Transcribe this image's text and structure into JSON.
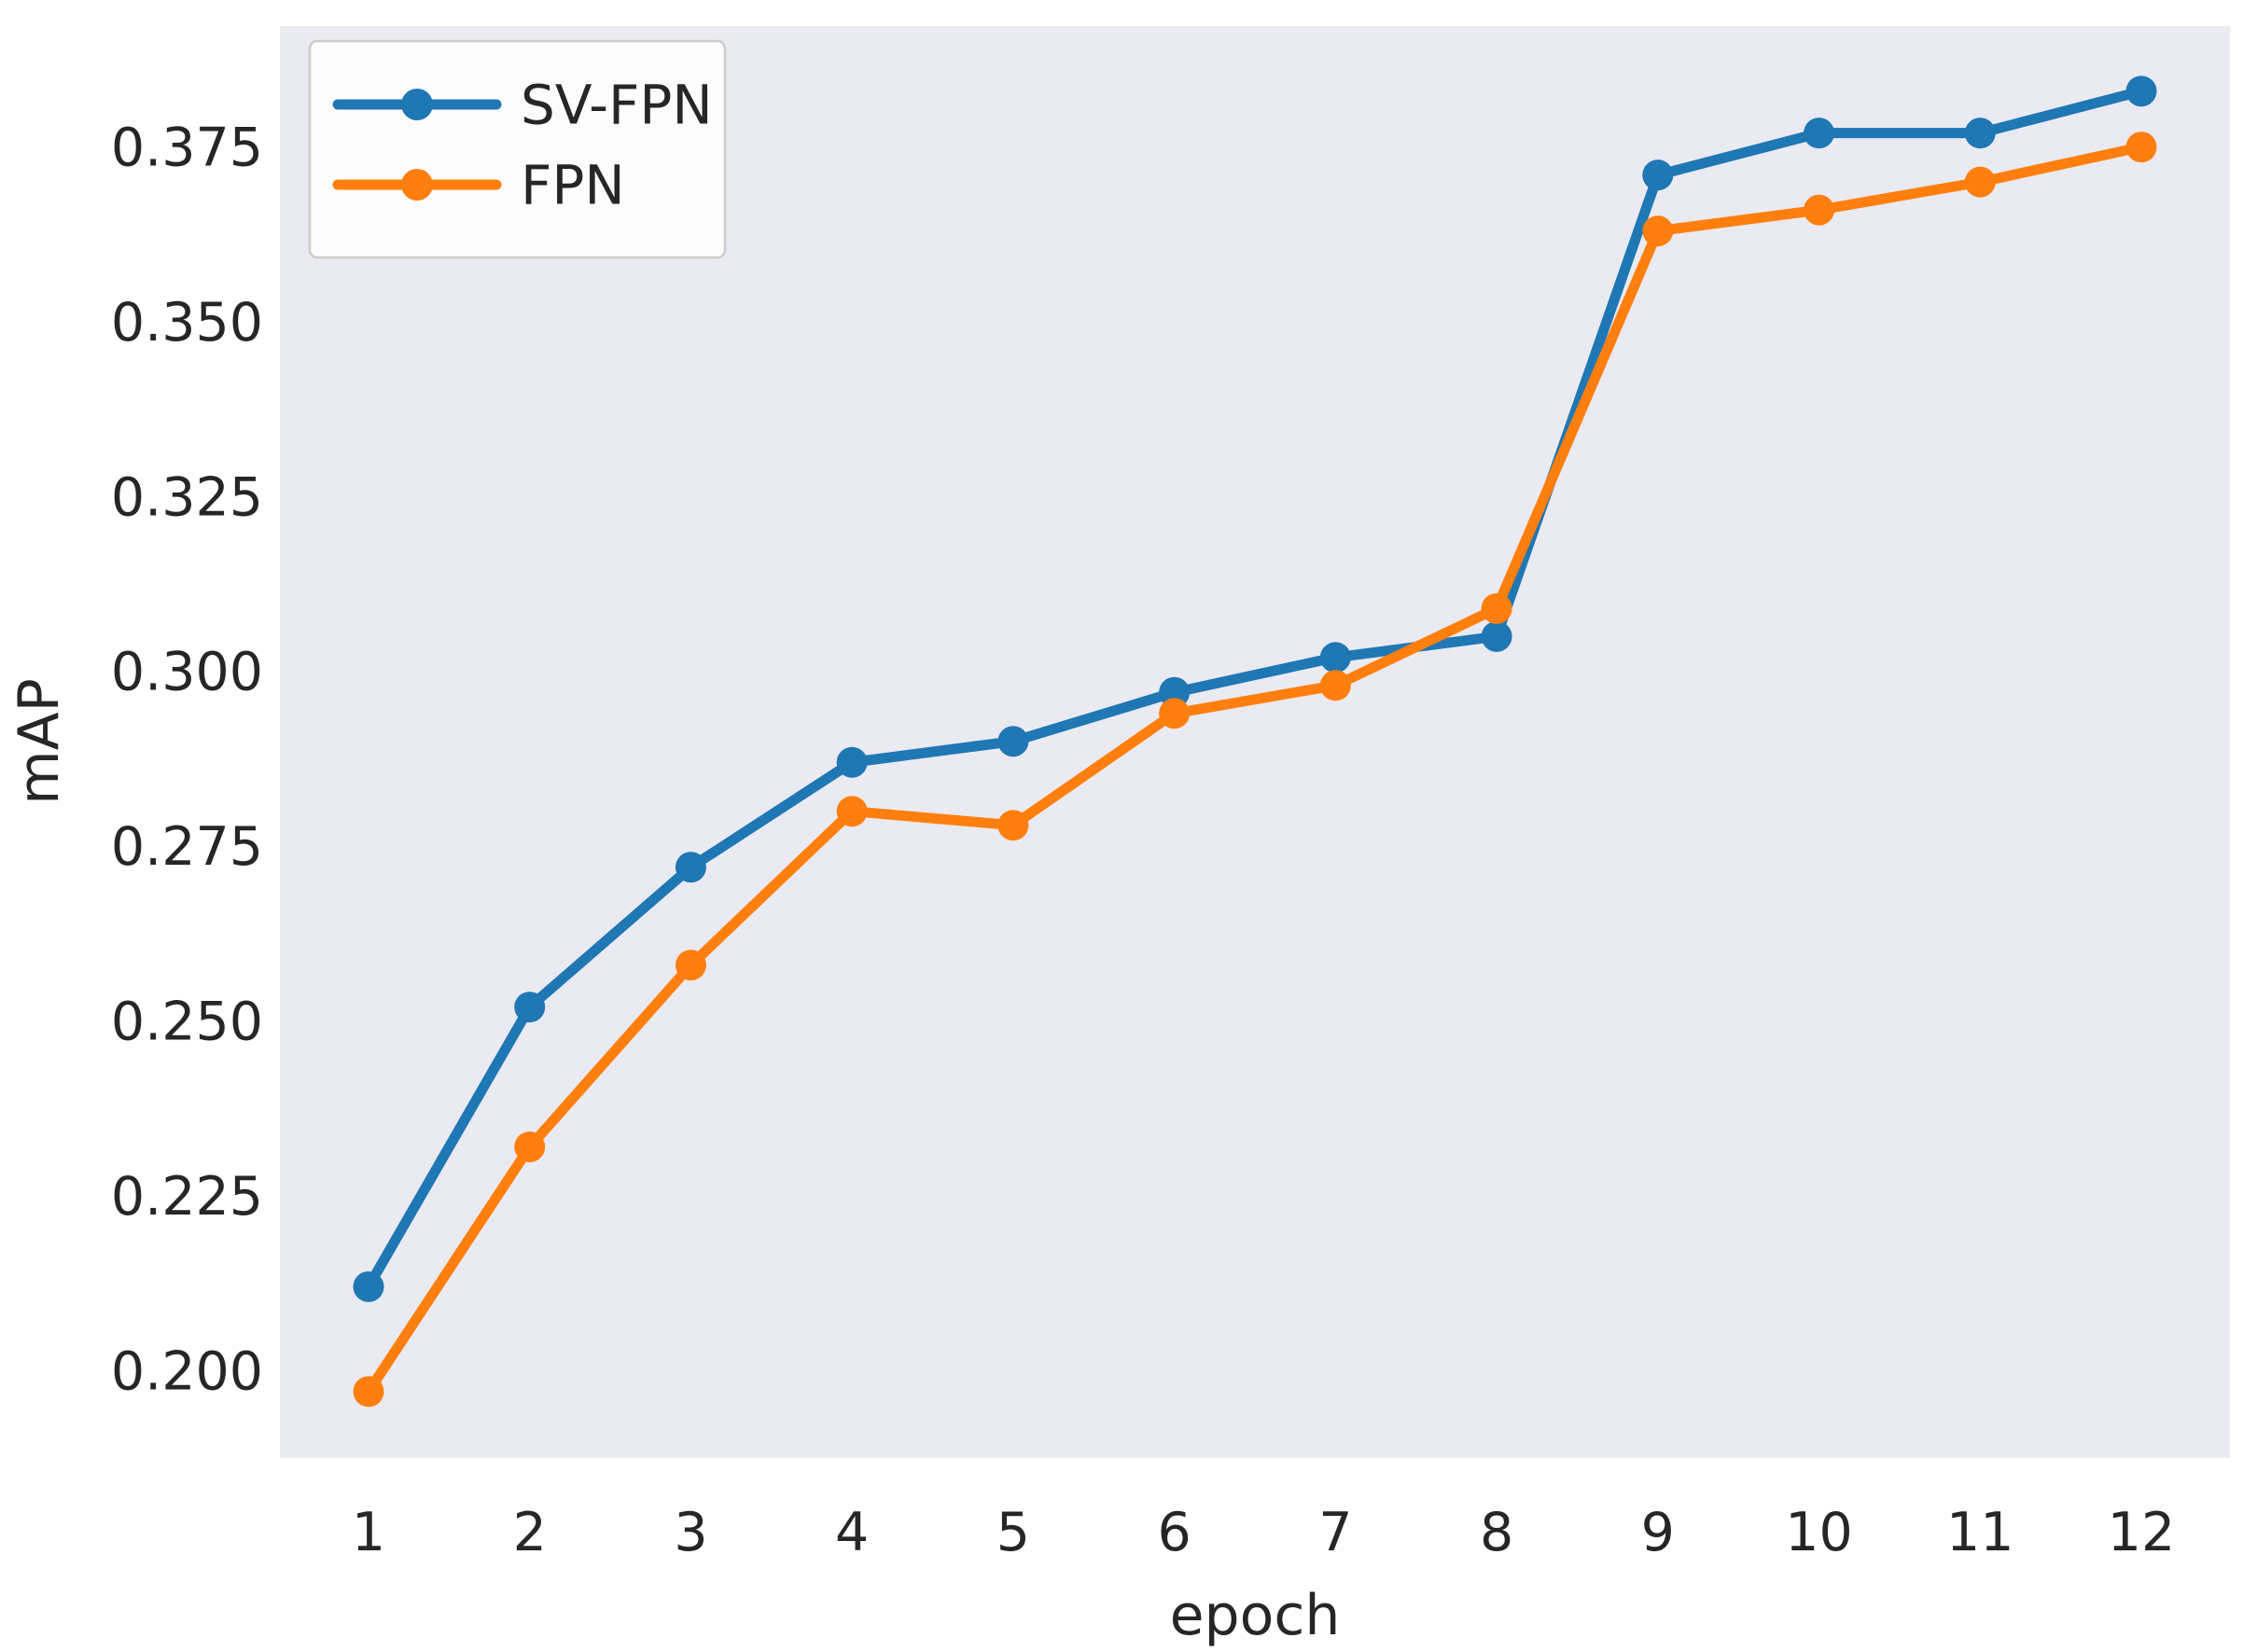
{
  "chart_data": {
    "type": "line",
    "title": "",
    "xlabel": "epoch",
    "ylabel": "mAP",
    "x": [
      1,
      2,
      3,
      4,
      5,
      6,
      7,
      8,
      9,
      10,
      11,
      12
    ],
    "series": [
      {
        "name": "SV-FPN",
        "color": "#1f77b4",
        "values": [
          0.212,
          0.252,
          0.272,
          0.287,
          0.29,
          0.297,
          0.302,
          0.305,
          0.371,
          0.377,
          0.377,
          0.383
        ]
      },
      {
        "name": "FPN",
        "color": "#ff7f0e",
        "values": [
          0.197,
          0.232,
          0.258,
          0.28,
          0.278,
          0.294,
          0.298,
          0.309,
          0.363,
          0.366,
          0.37,
          0.375
        ]
      }
    ],
    "x_tick_labels": [
      "1",
      "2",
      "3",
      "4",
      "5",
      "6",
      "7",
      "8",
      "9",
      "10",
      "11",
      "12"
    ],
    "y_ticks": [
      0.2,
      0.225,
      0.25,
      0.275,
      0.3,
      0.325,
      0.35,
      0.375
    ],
    "y_tick_labels": [
      "0.200",
      "0.225",
      "0.250",
      "0.275",
      "0.300",
      "0.325",
      "0.350",
      "0.375"
    ],
    "xlim": [
      0.45,
      12.55
    ],
    "ylim": [
      0.1875,
      0.3923
    ],
    "grid": false,
    "legend_position": "upper-left",
    "plot_bg_color": "#eaeaf2",
    "page_bg_color": "#ffffff",
    "text_color": "#262626",
    "legend_face_color": "rgba(255,255,255,0.85)",
    "legend_edge_color": "#cccccc"
  }
}
